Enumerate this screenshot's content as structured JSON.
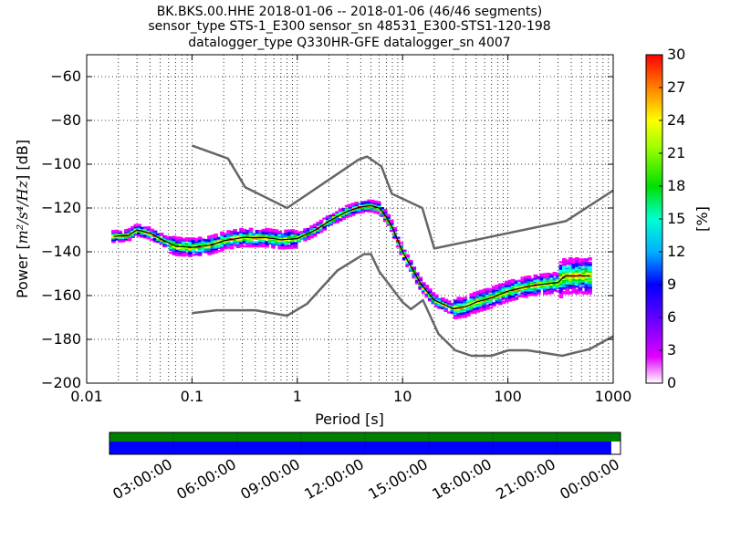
{
  "chart_data": {
    "type": "heatmap",
    "title_lines": [
      "BK.BKS.00.HHE   2018-01-06 -- 2018-01-06  (46/46 segments)",
      "sensor_type STS-1_E300 sensor_sn 48531_E300-STS1-120-198",
      "datalogger_type Q330HR-GFE datalogger_sn 4007"
    ],
    "xlabel": "Period [s]",
    "ylabel_prefix": "Power [",
    "ylabel_math": "m²/s⁴/Hz",
    "ylabel_suffix": "] [dB]",
    "xscale": "log",
    "xlim": [
      0.01,
      1000
    ],
    "ylim": [
      -200,
      -50
    ],
    "x_ticks": [
      {
        "value": 0.01,
        "label": "0.01"
      },
      {
        "value": 0.1,
        "label": "0.1"
      },
      {
        "value": 1,
        "label": "1"
      },
      {
        "value": 10,
        "label": "10"
      },
      {
        "value": 100,
        "label": "100"
      },
      {
        "value": 1000,
        "label": "1000"
      }
    ],
    "y_ticks": [
      {
        "value": -60,
        "label": "−60"
      },
      {
        "value": -80,
        "label": "−80"
      },
      {
        "value": -100,
        "label": "−100"
      },
      {
        "value": -120,
        "label": "−120"
      },
      {
        "value": -140,
        "label": "−140"
      },
      {
        "value": -160,
        "label": "−160"
      },
      {
        "value": -180,
        "label": "−180"
      },
      {
        "value": -200,
        "label": "−200"
      }
    ],
    "grid": "dotted",
    "nhnm": {
      "x": [
        0.1,
        0.22,
        0.32,
        0.8,
        3.8,
        4.6,
        6.3,
        7.9,
        15.4,
        20,
        354.8,
        1000
      ],
      "y": [
        -91.5,
        -97.4,
        -110.5,
        -120,
        -98,
        -96.5,
        -101,
        -113.5,
        -120,
        -138.5,
        -126,
        -112
      ]
    },
    "nlnm": {
      "x": [
        0.1,
        0.17,
        0.4,
        0.8,
        1.24,
        2.4,
        4.3,
        5,
        6,
        10,
        12,
        15.6,
        21.9,
        31.6,
        45,
        70,
        101,
        154,
        328,
        600,
        1000
      ],
      "y": [
        -168,
        -166.7,
        -166.7,
        -169.2,
        -163.7,
        -148.6,
        -141.1,
        -141.1,
        -149,
        -163,
        -166.2,
        -162.1,
        -177.5,
        -185,
        -187.5,
        -187.5,
        -185,
        -185,
        -187.5,
        -184.4,
        -178.6
      ]
    },
    "median": {
      "x": [
        0.018,
        0.025,
        0.03,
        0.04,
        0.05,
        0.07,
        0.1,
        0.15,
        0.2,
        0.3,
        0.5,
        0.7,
        1,
        1.5,
        2,
        3,
        4,
        5,
        6,
        7,
        8,
        10,
        15,
        20,
        30,
        40,
        50,
        70,
        100,
        150,
        200,
        300,
        350,
        500,
        600
      ],
      "y": [
        -133,
        -132.5,
        -130,
        -131.5,
        -134,
        -137.5,
        -138,
        -137,
        -135,
        -133.5,
        -133.5,
        -134.5,
        -134,
        -130,
        -126,
        -121.5,
        -119.5,
        -119,
        -120,
        -124,
        -129,
        -140,
        -155,
        -162,
        -166,
        -165,
        -163,
        -161,
        -158,
        -156,
        -155,
        -154,
        -151,
        -151,
        -151
      ]
    },
    "colorbar": {
      "label": "[%]",
      "min": 0,
      "max": 30,
      "ticks": [
        "0",
        "3",
        "6",
        "9",
        "12",
        "15",
        "18",
        "21",
        "24",
        "27",
        "30"
      ]
    },
    "time_axis": {
      "labels": [
        "03:00:00",
        "06:00:00",
        "09:00:00",
        "12:00:00",
        "15:00:00",
        "18:00:00",
        "21:00:00",
        "00:00:00"
      ],
      "data_coverage_fraction": 1.0,
      "gap_coverage_fraction": 0.982,
      "coverage_color": "#008000",
      "gap_color": "#0000ff"
    }
  }
}
